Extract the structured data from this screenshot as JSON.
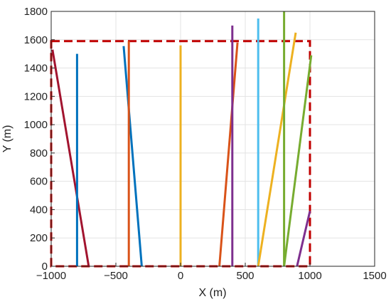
{
  "chart_data": {
    "type": "line",
    "xlabel": "X (m)",
    "ylabel": "Y (m)",
    "xlim": [
      -1000,
      1500
    ],
    "ylim": [
      0,
      1800
    ],
    "xticks": [
      -1000,
      -500,
      0,
      500,
      1000,
      1500
    ],
    "yticks": [
      0,
      200,
      400,
      600,
      800,
      1000,
      1200,
      1400,
      1600,
      1800
    ],
    "xtick_labels": [
      "−1000",
      "−500",
      "0",
      "500",
      "1000",
      "1500"
    ],
    "ytick_labels": [
      "0",
      "200",
      "400",
      "600",
      "800",
      "1000",
      "1200",
      "1400",
      "1600",
      "1800"
    ],
    "grid": true,
    "series": [
      {
        "color": "#A2142F",
        "points": [
          [
            -990,
            1530
          ],
          [
            -710,
            0
          ]
        ]
      },
      {
        "color": "#0072BD",
        "points": [
          [
            -800,
            1500
          ],
          [
            -800,
            0
          ]
        ]
      },
      {
        "color": "#0072BD",
        "points": [
          [
            -440,
            1555
          ],
          [
            -300,
            0
          ]
        ]
      },
      {
        "color": "#D95319",
        "points": [
          [
            -400,
            1590
          ],
          [
            -400,
            0
          ]
        ]
      },
      {
        "color": "#EDB120",
        "points": [
          [
            0,
            1560
          ],
          [
            0,
            0
          ]
        ]
      },
      {
        "color": "#D95319",
        "points": [
          [
            440,
            1580
          ],
          [
            300,
            0
          ]
        ]
      },
      {
        "color": "#7E2F8E",
        "points": [
          [
            400,
            1700
          ],
          [
            400,
            0
          ]
        ]
      },
      {
        "color": "#4DBEEE",
        "points": [
          [
            600,
            1750
          ],
          [
            600,
            0
          ]
        ]
      },
      {
        "color": "#EDB120",
        "points": [
          [
            890,
            1650
          ],
          [
            600,
            0
          ]
        ]
      },
      {
        "color": "#77AC30",
        "points": [
          [
            800,
            1800
          ],
          [
            800,
            0
          ]
        ]
      },
      {
        "color": "#77AC30",
        "points": [
          [
            1010,
            1490
          ],
          [
            800,
            0
          ]
        ]
      },
      {
        "color": "#7E2F8E",
        "points": [
          [
            1000,
            390
          ],
          [
            900,
            0
          ]
        ]
      }
    ],
    "annotations": [
      {
        "type": "dashed-rectangle",
        "color": "#C00000",
        "x": [
          -1000,
          1000
        ],
        "y": [
          0,
          1590
        ]
      }
    ]
  }
}
